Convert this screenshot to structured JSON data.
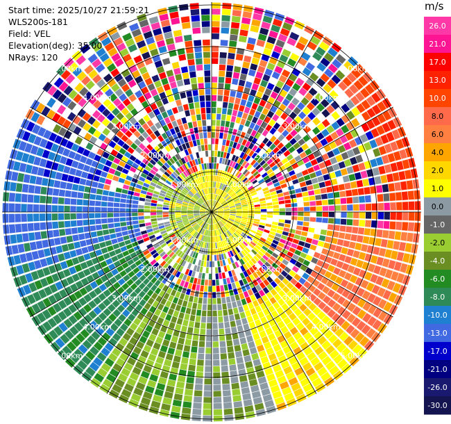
{
  "info": {
    "start_time": "Start time: 2025/10/27 21:59:21",
    "instrument": "WLS200s-181",
    "field": "Field: VEL",
    "elevation": "Elevation(deg): 35.00",
    "nrays": "NRays: 120"
  },
  "colorbar": {
    "unit": "m/s",
    "labels": [
      "26.0",
      "21.0",
      "17.0",
      "13.0",
      "10.0",
      "8.0",
      "6.0",
      "4.0",
      "2.0",
      "1.0",
      "0.0",
      "-1.0",
      "-2.0",
      "-4.0",
      "-6.0",
      "-8.0",
      "-10.0",
      "-13.0",
      "-17.0",
      "-21.0",
      "-26.0",
      "-30.0"
    ],
    "colors": [
      "#ff38a8",
      "#ff1493",
      "#ff0000",
      "#ff2200",
      "#ff4500",
      "#ff6a4a",
      "#ff8040",
      "#ffa500",
      "#ffd700",
      "#ffff00",
      "#8c9aa4",
      "#666666",
      "#9acd32",
      "#6b8e23",
      "#228b22",
      "#2e8b57",
      "#1f7fd0",
      "#4169e1",
      "#0000cd",
      "#000080",
      "#191970",
      "#141450"
    ]
  },
  "range_rings": {
    "labels": [
      "1.00km",
      "2.00km",
      "3.00km",
      "4.00km",
      "5.00km"
    ]
  },
  "chart_data": {
    "type": "heatmap",
    "projection": "polar-ppi",
    "field": "VEL",
    "unit": "m/s",
    "nrays": 120,
    "elevation_deg": 35.0,
    "range_km": [
      0,
      5
    ],
    "color_levels": [
      -30,
      -26,
      -21,
      -17,
      -13,
      -10,
      -8,
      -6,
      -4,
      -2,
      -1,
      0,
      1,
      2,
      4,
      6,
      8,
      10,
      13,
      17,
      21,
      26
    ]
  }
}
